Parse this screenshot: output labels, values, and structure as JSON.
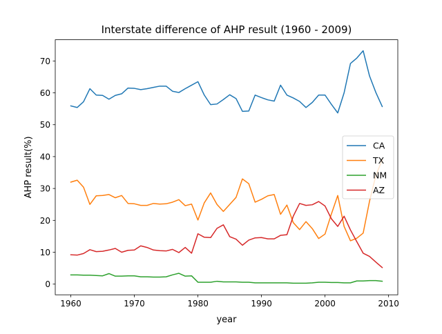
{
  "chart_data": {
    "type": "line",
    "title": "Interstate difference of AHP result (1960 - 2009)",
    "xlabel": "year",
    "ylabel": "AHP result(%)",
    "xlim": [
      1957.55,
      2011.45
    ],
    "ylim": [
      -3.35,
      76.65
    ],
    "xticks": [
      1960,
      1970,
      1980,
      1990,
      2000,
      2010
    ],
    "yticks": [
      0,
      10,
      20,
      30,
      40,
      50,
      60,
      70
    ],
    "grid": false,
    "legend_position": "center-right",
    "x": [
      1960,
      1961,
      1962,
      1963,
      1964,
      1965,
      1966,
      1967,
      1968,
      1969,
      1970,
      1971,
      1972,
      1973,
      1974,
      1975,
      1976,
      1977,
      1978,
      1979,
      1980,
      1981,
      1982,
      1983,
      1984,
      1985,
      1986,
      1987,
      1988,
      1989,
      1990,
      1991,
      1992,
      1993,
      1994,
      1995,
      1996,
      1997,
      1998,
      1999,
      2000,
      2001,
      2002,
      2003,
      2004,
      2005,
      2006,
      2007,
      2008,
      2009
    ],
    "series": [
      {
        "name": "CA",
        "color": "#1f77b4",
        "values": [
          55.9,
          55.4,
          57.2,
          61.3,
          59.3,
          59.2,
          58.0,
          59.2,
          59.7,
          61.5,
          61.4,
          61.0,
          61.3,
          61.7,
          62.1,
          62.1,
          60.5,
          60.1,
          61.3,
          62.4,
          63.5,
          59.3,
          56.3,
          56.5,
          57.9,
          59.4,
          58.2,
          54.2,
          54.3,
          59.3,
          58.5,
          57.8,
          57.4,
          62.4,
          59.3,
          58.4,
          57.3,
          55.4,
          57.0,
          59.3,
          59.3,
          56.4,
          53.7,
          60.0,
          69.2,
          70.9,
          73.2,
          65.3,
          60.1,
          55.7
        ]
      },
      {
        "name": "TX",
        "color": "#ff7f0e",
        "values": [
          32.0,
          32.6,
          30.4,
          25.0,
          27.7,
          27.8,
          28.1,
          27.1,
          27.8,
          25.3,
          25.2,
          24.7,
          24.7,
          25.3,
          25.1,
          25.2,
          25.7,
          26.5,
          24.6,
          25.1,
          20.1,
          25.5,
          28.6,
          25.0,
          22.8,
          25.0,
          27.2,
          33.0,
          31.5,
          25.7,
          26.6,
          27.7,
          28.1,
          21.9,
          24.8,
          19.3,
          17.1,
          19.6,
          17.4,
          14.3,
          15.7,
          22.0,
          27.8,
          18.1,
          13.6,
          14.4,
          16.0,
          26.0,
          34.1,
          39.0
        ]
      },
      {
        "name": "NM",
        "color": "#2ca02c",
        "values": [
          2.9,
          2.9,
          2.8,
          2.8,
          2.7,
          2.6,
          3.3,
          2.5,
          2.5,
          2.6,
          2.6,
          2.3,
          2.3,
          2.2,
          2.2,
          2.3,
          2.9,
          3.4,
          2.5,
          2.6,
          0.6,
          0.6,
          0.6,
          0.9,
          0.7,
          0.7,
          0.7,
          0.6,
          0.6,
          0.4,
          0.4,
          0.4,
          0.4,
          0.4,
          0.4,
          0.3,
          0.3,
          0.3,
          0.4,
          0.6,
          0.6,
          0.5,
          0.5,
          0.4,
          0.4,
          1.0,
          1.0,
          1.1,
          1.1,
          0.9
        ]
      },
      {
        "name": "AZ",
        "color": "#d62728",
        "values": [
          9.2,
          9.1,
          9.6,
          10.8,
          10.2,
          10.3,
          10.7,
          11.2,
          10.0,
          10.6,
          10.7,
          12.0,
          11.5,
          10.7,
          10.5,
          10.4,
          10.9,
          9.9,
          11.5,
          9.7,
          15.8,
          14.7,
          14.6,
          17.5,
          18.6,
          14.9,
          14.1,
          12.2,
          13.8,
          14.5,
          14.6,
          14.2,
          14.2,
          15.3,
          15.5,
          21.3,
          25.3,
          24.7,
          24.9,
          25.9,
          24.5,
          20.5,
          18.1,
          21.3,
          17.0,
          13.3,
          9.7,
          8.7,
          6.9,
          5.2
        ]
      }
    ]
  }
}
